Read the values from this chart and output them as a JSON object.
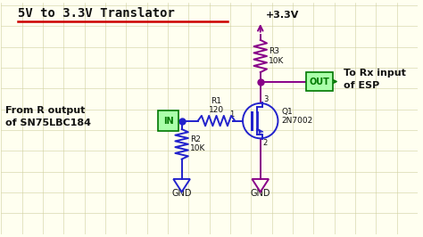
{
  "background_color": "#fffff0",
  "grid_color": "#d0d0a0",
  "title": "5V to 3.3V Translator",
  "title_underline_color": "#cc0000",
  "wire_color_blue": "#2222cc",
  "wire_color_purple": "#880088",
  "text_color_black": "#111111",
  "label_in": "IN",
  "label_out": "OUT",
  "label_vcc": "+3.3V",
  "label_r1": "R1\n120",
  "label_r2": "R2\n10K",
  "label_r3": "R3\n10K",
  "label_q1": "Q1\n2N7002",
  "label_gnd1": "GND",
  "label_gnd2": "GND",
  "label_from": "From R output\nof SN75LBC184",
  "label_to": "To Rx input\nof ESP",
  "pin1": "1",
  "pin2": "2",
  "pin3": "3",
  "figsize": [
    4.74,
    2.66
  ],
  "dpi": 100,
  "xlim": [
    0,
    9.0
  ],
  "ylim": [
    0,
    5.0
  ]
}
